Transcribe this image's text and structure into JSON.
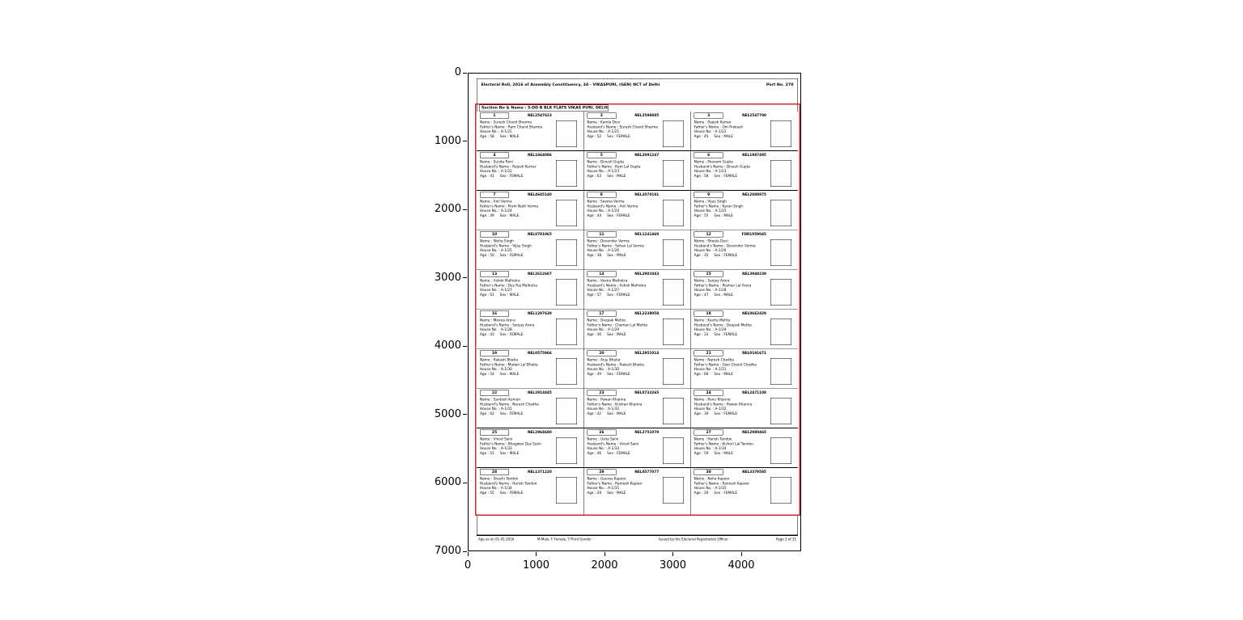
{
  "figure": {
    "x_tick_labels": [
      "0",
      "1000",
      "2000",
      "3000",
      "4000"
    ],
    "y_tick_labels": [
      "0",
      "1000",
      "2000",
      "3000",
      "4000",
      "5000",
      "6000",
      "7000"
    ]
  },
  "colors": {
    "red_annotation": "#c43030"
  },
  "document": {
    "header": {
      "left": "Electoral Roll, 2016 of Assembly Constituency, 34 - VIKASPURI, (GEN) NCT of Delhi",
      "right": "Part No. 270"
    },
    "section_header": "Section No & Name : 3-DD B BLK FLATS VIKAS PURI, DELHI",
    "field_labels": {
      "name": "Name",
      "father": "Father's Name",
      "husband": "Husband's Name",
      "house": "House No.",
      "age": "Age",
      "sex": "Sex"
    },
    "footer": {
      "left": "Age as on 01-01-2016",
      "center_left": "M-Male, F-Female, T-Third Gender",
      "center_right": "Issued by the Electoral Registration Officer",
      "right": "Page 3 of 31"
    },
    "cards": [
      {
        "serial": "1",
        "epic": "NEL2547623",
        "name": "Suresh Chand Sharma",
        "rel_label": "father",
        "rel": "Ram Chand Sharma",
        "house": "A-1/21",
        "age": "58",
        "sex": "MALE"
      },
      {
        "serial": "2",
        "epic": "NEL2598885",
        "name": "Kamla Devi",
        "rel_label": "husband",
        "rel": "Suresh Chand Sharma",
        "house": "A-1/21",
        "age": "52",
        "sex": "FEMALE"
      },
      {
        "serial": "3",
        "epic": "NEL2547700",
        "name": "Rajesh Kumar",
        "rel_label": "father",
        "rel": "Om Prakash",
        "house": "A-1/22",
        "age": "45",
        "sex": "MALE"
      },
      {
        "serial": "4",
        "epic": "NEL1664086",
        "name": "Sunita Rani",
        "rel_label": "husband",
        "rel": "Rajesh Kumar",
        "house": "A-1/22",
        "age": "41",
        "sex": "FEMALE"
      },
      {
        "serial": "5",
        "epic": "NEL2091247",
        "name": "Dinesh Gupta",
        "rel_label": "father",
        "rel": "Ram Lal Gupta",
        "house": "A-1/23",
        "age": "63",
        "sex": "MALE"
      },
      {
        "serial": "6",
        "epic": "NEL1987495",
        "name": "Poonam Gupta",
        "rel_label": "husband",
        "rel": "Dinesh Gupta",
        "house": "A-1/23",
        "age": "58",
        "sex": "FEMALE"
      },
      {
        "serial": "7",
        "epic": "NEL4645140",
        "name": "Anil Verma",
        "rel_label": "father",
        "rel": "Prem Nath Verma",
        "house": "A-1/24",
        "age": "49",
        "sex": "MALE"
      },
      {
        "serial": "8",
        "epic": "NEL2070191",
        "name": "Seema Verma",
        "rel_label": "husband",
        "rel": "Anil Verma",
        "house": "A-1/24",
        "age": "44",
        "sex": "FEMALE"
      },
      {
        "serial": "9",
        "epic": "NEL2888975",
        "name": "Vijay Singh",
        "rel_label": "father",
        "rel": "Karan Singh",
        "house": "A-1/25",
        "age": "55",
        "sex": "MALE"
      },
      {
        "serial": "10",
        "epic": "NEL0781065",
        "name": "Nisha Singh",
        "rel_label": "husband",
        "rel": "Vijay Singh",
        "house": "A-1/25",
        "age": "50",
        "sex": "FEMALE"
      },
      {
        "serial": "11",
        "epic": "NEL1241469",
        "name": "Devender Verma",
        "rel_label": "father",
        "rel": "Sohan Lal Verma",
        "house": "A-1/26",
        "age": "38",
        "sex": "MALE"
      },
      {
        "serial": "12",
        "epic": "FDR1059045",
        "name": "Sheela Devi",
        "rel_label": "husband",
        "rel": "Devender Verma",
        "house": "A-1/26",
        "age": "35",
        "sex": "FEMALE"
      },
      {
        "serial": "13",
        "epic": "NEL2612687",
        "name": "Ashok Malhotra",
        "rel_label": "father",
        "rel": "Des Raj Malhotra",
        "house": "A-1/27",
        "age": "61",
        "sex": "MALE"
      },
      {
        "serial": "14",
        "epic": "NEL2901043",
        "name": "Veena Malhotra",
        "rel_label": "husband",
        "rel": "Ashok Malhotra",
        "house": "A-1/27",
        "age": "57",
        "sex": "FEMALE"
      },
      {
        "serial": "15",
        "epic": "NEL3948239",
        "name": "Sanjay Arora",
        "rel_label": "father",
        "rel": "Roshan Lal Arora",
        "house": "A-1/28",
        "age": "47",
        "sex": "MALE"
      },
      {
        "serial": "16",
        "epic": "NEL1297639",
        "name": "Meena Arora",
        "rel_label": "husband",
        "rel": "Sanjay Arora",
        "house": "A-1/28",
        "age": "43",
        "sex": "FEMALE"
      },
      {
        "serial": "17",
        "epic": "NEL2238058",
        "name": "Deepak Mehta",
        "rel_label": "father",
        "rel": "Chaman Lal Mehta",
        "house": "A-1/29",
        "age": "36",
        "sex": "MALE"
      },
      {
        "serial": "18",
        "epic": "NEL0662429",
        "name": "Kavita Mehta",
        "rel_label": "husband",
        "rel": "Deepak Mehta",
        "house": "A-1/29",
        "age": "33",
        "sex": "FEMALE"
      },
      {
        "serial": "19",
        "epic": "NEL0575966",
        "name": "Rakesh Bhatia",
        "rel_label": "father",
        "rel": "Madan Lal Bhatia",
        "house": "A-1/30",
        "age": "54",
        "sex": "MALE"
      },
      {
        "serial": "20",
        "epic": "NEL2951014",
        "name": "Anju Bhatia",
        "rel_label": "husband",
        "rel": "Rakesh Bhatia",
        "house": "A-1/30",
        "age": "49",
        "sex": "FEMALE"
      },
      {
        "serial": "21",
        "epic": "NEL0191671",
        "name": "Naresh Chadha",
        "rel_label": "father",
        "rel": "Gian Chand Chadha",
        "house": "A-1/31",
        "age": "66",
        "sex": "MALE"
      },
      {
        "serial": "22",
        "epic": "NEL2914845",
        "name": "Santosh Kumari",
        "rel_label": "husband",
        "rel": "Naresh Chadha",
        "house": "A-1/31",
        "age": "62",
        "sex": "FEMALE"
      },
      {
        "serial": "23",
        "epic": "NEL0733265",
        "name": "Pawan Khanna",
        "rel_label": "father",
        "rel": "Krishan Khanna",
        "house": "A-1/32",
        "age": "42",
        "sex": "MALE"
      },
      {
        "serial": "24",
        "epic": "NEL2471108",
        "name": "Renu Khanna",
        "rel_label": "husband",
        "rel": "Pawan Khanna",
        "house": "A-1/32",
        "age": "39",
        "sex": "FEMALE"
      },
      {
        "serial": "25",
        "epic": "NEL2964680",
        "name": "Vinod Saini",
        "rel_label": "father",
        "rel": "Bhagwan Das Saini",
        "house": "A-1/33",
        "age": "51",
        "sex": "MALE"
      },
      {
        "serial": "26",
        "epic": "NEL2751079",
        "name": "Usha Saini",
        "rel_label": "husband",
        "rel": "Vinod Saini",
        "house": "A-1/33",
        "age": "46",
        "sex": "FEMALE"
      },
      {
        "serial": "27",
        "epic": "NEL2980465",
        "name": "Harish Tandon",
        "rel_label": "father",
        "rel": "Kishori Lal Tandon",
        "house": "A-1/34",
        "age": "59",
        "sex": "MALE"
      },
      {
        "serial": "28",
        "epic": "NEL1371220",
        "name": "Shashi Tandon",
        "rel_label": "husband",
        "rel": "Harish Tandon",
        "house": "A-1/34",
        "age": "55",
        "sex": "FEMALE"
      },
      {
        "serial": "29",
        "epic": "NEL0577077",
        "name": "Gaurav Kapoor",
        "rel_label": "father",
        "rel": "Ramesh Kapoor",
        "house": "A-1/35",
        "age": "29",
        "sex": "MALE"
      },
      {
        "serial": "30",
        "epic": "NEL3379585",
        "name": "Neha Kapoor",
        "rel_label": "father",
        "rel": "Ramesh Kapoor",
        "house": "A-1/35",
        "age": "26",
        "sex": "FEMALE"
      }
    ]
  }
}
